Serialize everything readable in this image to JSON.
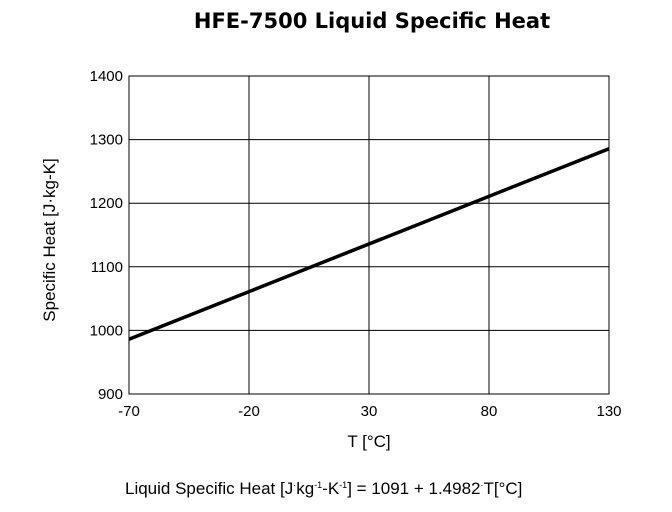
{
  "chart_data": {
    "type": "line",
    "title": "HFE-7500 Liquid Specific Heat",
    "xlabel": "T [°C]",
    "ylabel": "Specific Heat [J·kg-K]",
    "xlim": [
      -70,
      130
    ],
    "ylim": [
      900,
      1400
    ],
    "xticks": [
      -70,
      -20,
      30,
      80,
      130
    ],
    "yticks": [
      900,
      1000,
      1100,
      1200,
      1300,
      1400
    ],
    "grid": true,
    "series": [
      {
        "x": [
          -70,
          130
        ],
        "y": [
          986.1,
          1285.7
        ]
      }
    ],
    "formula": {
      "prefix": "Liquid Specific Heat [J",
      "unit_a": "kg",
      "unit_a_exp": "-1",
      "unit_b": "-K",
      "unit_b_exp": "-1",
      "suffix": "] = 1091 + 1.4982",
      "tail": "T[°C]"
    }
  }
}
